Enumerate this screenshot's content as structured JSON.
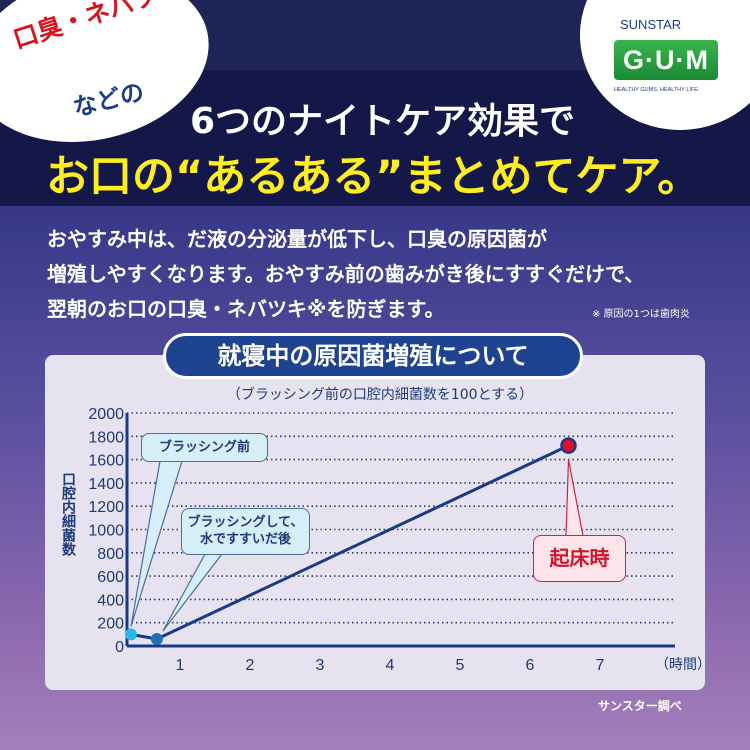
{
  "bubble": {
    "line1": "口臭・ネバツキ",
    "line2": "などの"
  },
  "logo": {
    "brand": "SUNSTAR",
    "product": "G·U·M",
    "tagline": "HEALTHY GUMS. HEALTHY LIFE."
  },
  "headline": {
    "line1": "6つのナイトケア効果で",
    "line2": "お口の“あるある”まとめてケア。"
  },
  "body": {
    "lines": [
      "おやすみ中は、だ液の分泌量が低下し、口臭の原因菌が",
      "増殖しやすくなります。おやすみ前の歯みがき後にすすぐだけで、",
      "翌朝のお口の口臭・ネバツキ※を防ぎます。"
    ],
    "footnote": "※ 原因の1つは歯肉炎"
  },
  "colors": {
    "navy": "#1e4390",
    "line": "#1a3a86",
    "before": "#29b6e8",
    "after": "#1f6fb8",
    "wake": "#e0102a",
    "callout_red": "#c8283c"
  },
  "chart_data": {
    "type": "line",
    "title": "就寝中の原因菌増殖について",
    "subtitle": "（ブラッシング前の口腔内細菌数を100とする）",
    "ylabel": "口腔内細菌数",
    "xlabel": "（時間）",
    "ylim": [
      0,
      2000
    ],
    "yticks": [
      "0",
      "200",
      "400",
      "600",
      "800",
      "1000",
      "1200",
      "1400",
      "1600",
      "1800",
      "2000"
    ],
    "xticks": [
      "1",
      "2",
      "3",
      "4",
      "5",
      "6",
      "7"
    ],
    "grid": true,
    "points": [
      {
        "x": 0.3,
        "y": 100,
        "label": "ブラッシング前"
      },
      {
        "x": 0.67,
        "y": 60,
        "label": "ブラッシングして、水ですすいだ後"
      },
      {
        "x": 6.55,
        "y": 1720,
        "label": "起床時"
      }
    ]
  },
  "source": "サンスター調べ"
}
